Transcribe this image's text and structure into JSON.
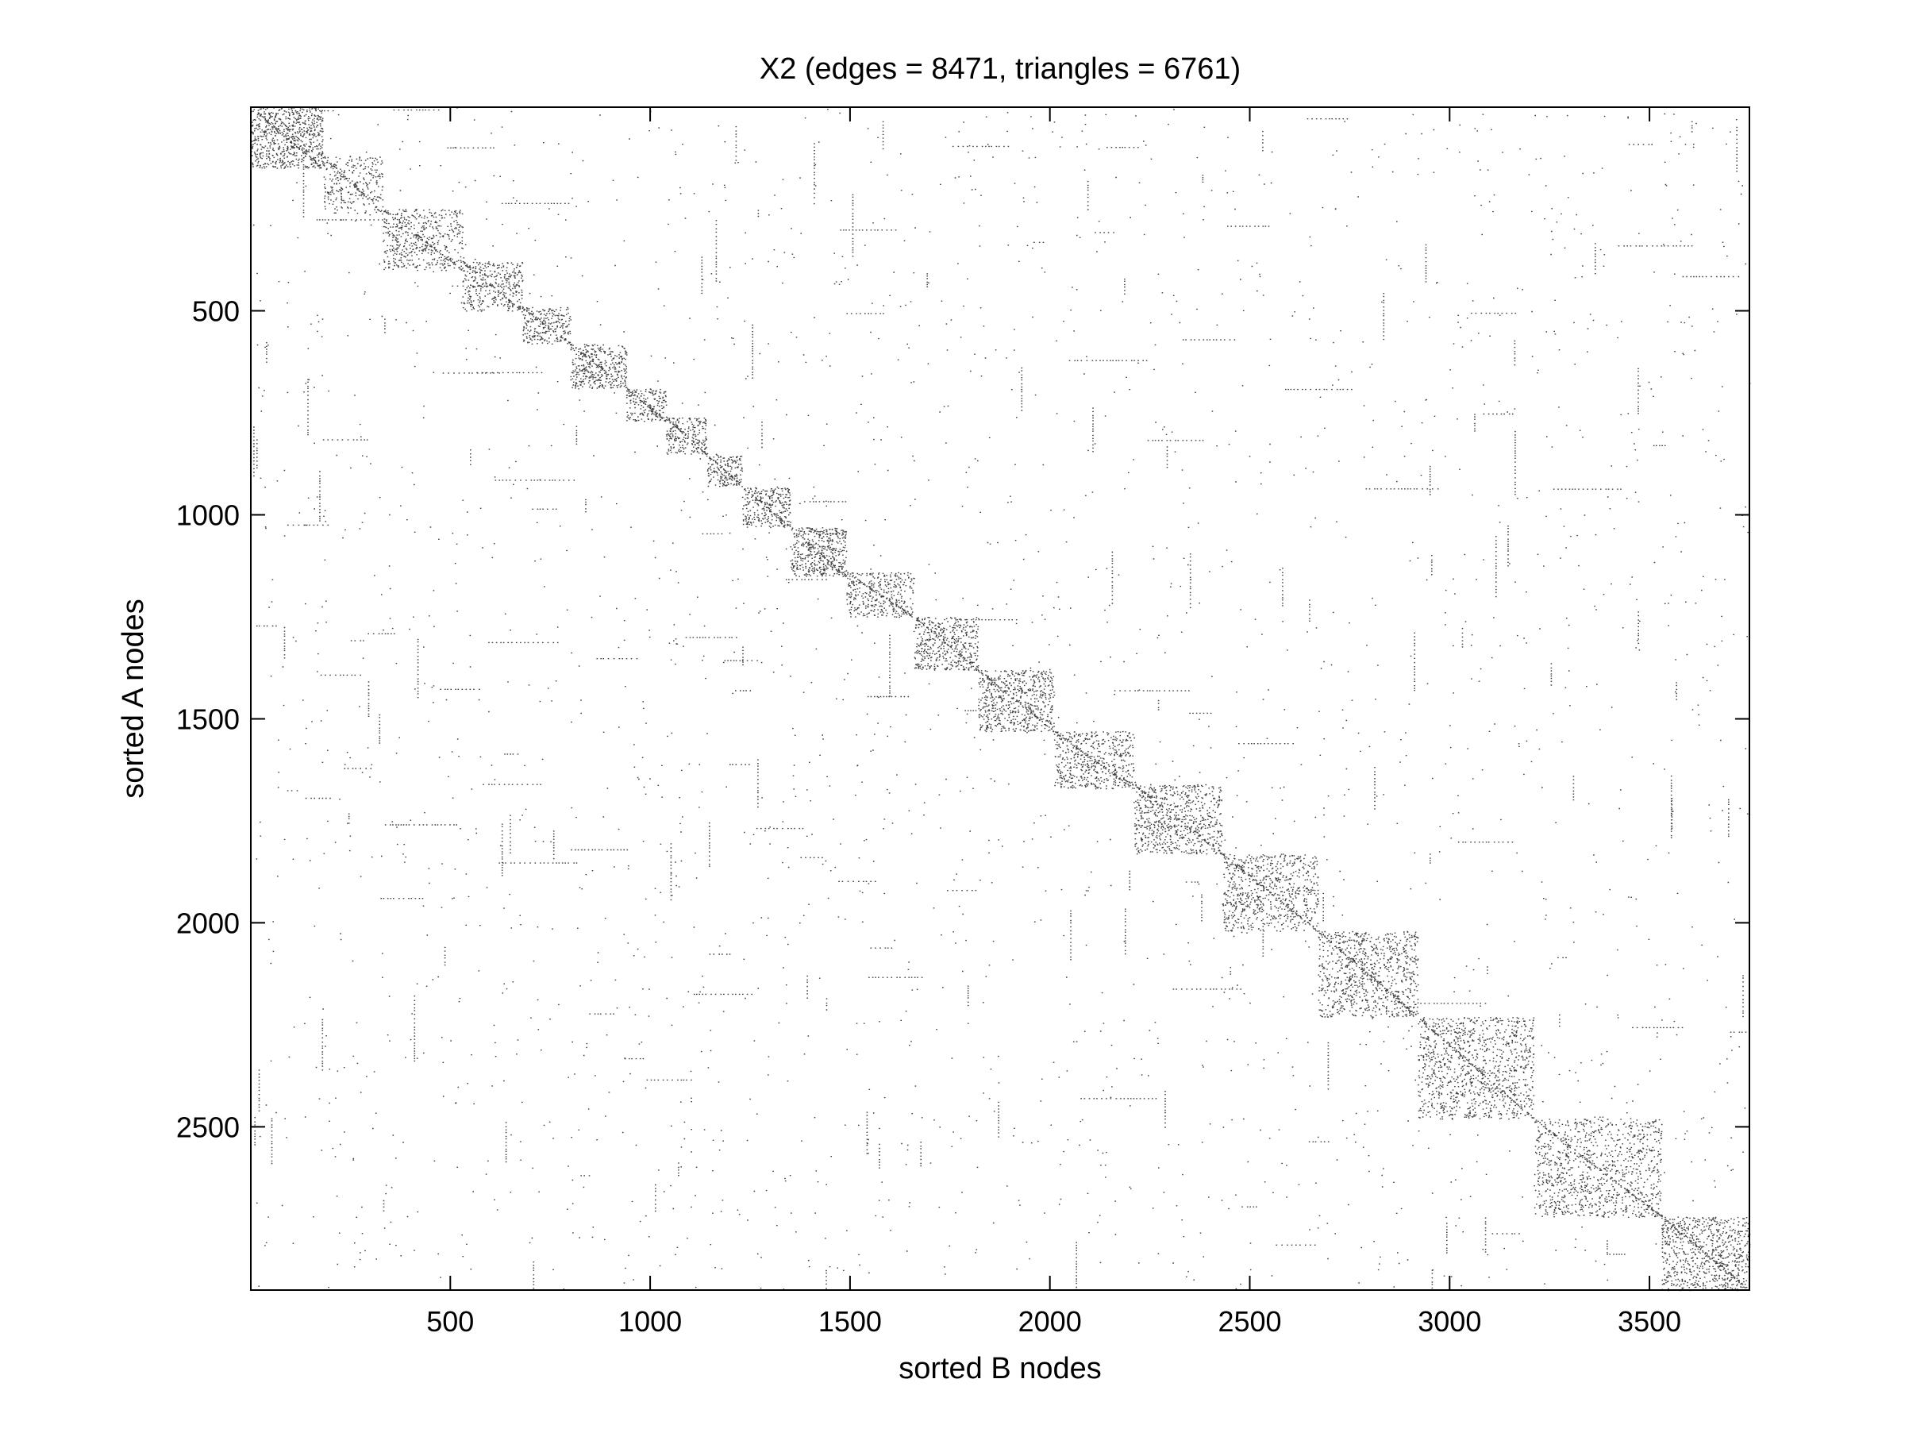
{
  "chart_data": {
    "type": "heatmap",
    "subtype": "sparse-adjacency-spy-plot",
    "title": "X2 (edges = 8471, triangles = 6761)",
    "xlabel": "sorted B nodes",
    "ylabel": "sorted A nodes",
    "edges": 8471,
    "triangles": 6761,
    "xlim": [
      1,
      3750
    ],
    "ylim": [
      1,
      2900
    ],
    "y_reversed": true,
    "x_ticks": [
      500,
      1000,
      1500,
      2000,
      2500,
      3000,
      3500
    ],
    "y_ticks": [
      500,
      1000,
      1500,
      2000,
      2500
    ],
    "x_tick_labels": [
      "500",
      "1000",
      "1500",
      "2000",
      "2500",
      "3000",
      "3500"
    ],
    "y_tick_labels": [
      "500",
      "1000",
      "1500",
      "2000",
      "2500"
    ],
    "grid": false,
    "legend": "none",
    "marker_color": "#000000",
    "diagonal_blocks": [
      {
        "x0": 1,
        "x1": 180,
        "y0": 1,
        "y1": 150,
        "density": 0.1
      },
      {
        "x0": 180,
        "x1": 330,
        "y0": 120,
        "y1": 260,
        "density": 0.05
      },
      {
        "x0": 330,
        "x1": 530,
        "y0": 250,
        "y1": 400,
        "density": 0.06
      },
      {
        "x0": 530,
        "x1": 680,
        "y0": 380,
        "y1": 500,
        "density": 0.07
      },
      {
        "x0": 680,
        "x1": 800,
        "y0": 490,
        "y1": 580,
        "density": 0.08
      },
      {
        "x0": 800,
        "x1": 940,
        "y0": 580,
        "y1": 690,
        "density": 0.09
      },
      {
        "x0": 940,
        "x1": 1040,
        "y0": 690,
        "y1": 770,
        "density": 0.09
      },
      {
        "x0": 1040,
        "x1": 1140,
        "y0": 760,
        "y1": 850,
        "density": 0.09
      },
      {
        "x0": 1140,
        "x1": 1230,
        "y0": 850,
        "y1": 930,
        "density": 0.09
      },
      {
        "x0": 1230,
        "x1": 1350,
        "y0": 930,
        "y1": 1030,
        "density": 0.09
      },
      {
        "x0": 1350,
        "x1": 1490,
        "y0": 1030,
        "y1": 1150,
        "density": 0.1
      },
      {
        "x0": 1490,
        "x1": 1660,
        "y0": 1140,
        "y1": 1250,
        "density": 0.07
      },
      {
        "x0": 1660,
        "x1": 1820,
        "y0": 1250,
        "y1": 1380,
        "density": 0.08
      },
      {
        "x0": 1820,
        "x1": 2010,
        "y0": 1380,
        "y1": 1530,
        "density": 0.08
      },
      {
        "x0": 2010,
        "x1": 2210,
        "y0": 1530,
        "y1": 1670,
        "density": 0.07
      },
      {
        "x0": 2210,
        "x1": 2430,
        "y0": 1660,
        "y1": 1830,
        "density": 0.07
      },
      {
        "x0": 2430,
        "x1": 2670,
        "y0": 1830,
        "y1": 2020,
        "density": 0.06
      },
      {
        "x0": 2670,
        "x1": 2920,
        "y0": 2020,
        "y1": 2230,
        "density": 0.06
      },
      {
        "x0": 2920,
        "x1": 3210,
        "y0": 2230,
        "y1": 2480,
        "density": 0.055
      },
      {
        "x0": 3210,
        "x1": 3530,
        "y0": 2480,
        "y1": 2720,
        "density": 0.05
      },
      {
        "x0": 3530,
        "x1": 3750,
        "y0": 2720,
        "y1": 2900,
        "density": 0.07
      }
    ],
    "background_density": 0.0009
  }
}
